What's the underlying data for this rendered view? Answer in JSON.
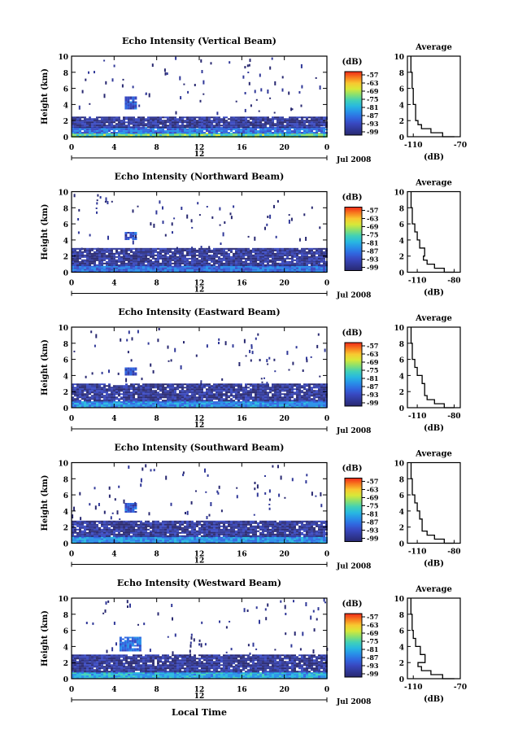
{
  "panels": [
    {
      "title": "Echo Intensity (Vertical Beam)",
      "ylabel": "Height (km)",
      "yticks": [
        "0",
        "2",
        "4",
        "6",
        "8",
        "10"
      ],
      "xticks": [
        "0",
        "4",
        "8",
        "12",
        "16",
        "20",
        "0"
      ],
      "date_label": "12",
      "month_label": "Jul 2008",
      "colorbar": {
        "unit": "(dB)",
        "labels": [
          "-57",
          "-63",
          "-69",
          "-75",
          "-81",
          "-87",
          "-93",
          "-99"
        ]
      },
      "profile": {
        "title": "Average",
        "xticks": [
          "-110",
          "-70"
        ],
        "yticks": [
          "0",
          "2",
          "4",
          "6",
          "8",
          "10"
        ],
        "xlabel": "(dB)"
      }
    },
    {
      "title": "Echo Intensity (Northward Beam)",
      "ylabel": "Height (km)",
      "yticks": [
        "0",
        "2",
        "4",
        "6",
        "8",
        "10"
      ],
      "xticks": [
        "0",
        "4",
        "8",
        "12",
        "16",
        "20",
        "0"
      ],
      "date_label": "12",
      "month_label": "Jul 2008",
      "colorbar": {
        "unit": "(dB)",
        "labels": [
          "-57",
          "-63",
          "-69",
          "-75",
          "-81",
          "-87",
          "-93",
          "-99"
        ]
      },
      "profile": {
        "title": "Average",
        "xticks": [
          "-110",
          "-80"
        ],
        "yticks": [
          "0",
          "2",
          "4",
          "6",
          "8",
          "10"
        ],
        "xlabel": "(dB)"
      }
    },
    {
      "title": "Echo Intensity (Eastward Beam)",
      "ylabel": "Height (km)",
      "yticks": [
        "0",
        "2",
        "4",
        "6",
        "8",
        "10"
      ],
      "xticks": [
        "0",
        "4",
        "8",
        "12",
        "16",
        "20",
        "0"
      ],
      "date_label": "12",
      "month_label": "Jul 2008",
      "colorbar": {
        "unit": "(dB)",
        "labels": [
          "-57",
          "-63",
          "-69",
          "-75",
          "-81",
          "-87",
          "-93",
          "-99"
        ]
      },
      "profile": {
        "title": "Average",
        "xticks": [
          "-110",
          "-80"
        ],
        "yticks": [
          "0",
          "2",
          "4",
          "6",
          "8",
          "10"
        ],
        "xlabel": "(dB)"
      }
    },
    {
      "title": "Echo Intensity (Southward Beam)",
      "ylabel": "Height (km)",
      "yticks": [
        "0",
        "2",
        "4",
        "6",
        "8",
        "10"
      ],
      "xticks": [
        "0",
        "4",
        "8",
        "12",
        "16",
        "20",
        "0"
      ],
      "date_label": "12",
      "month_label": "Jul 2008",
      "colorbar": {
        "unit": "(dB)",
        "labels": [
          "-57",
          "-63",
          "-69",
          "-75",
          "-81",
          "-87",
          "-93",
          "-99"
        ]
      },
      "profile": {
        "title": "Average",
        "xticks": [
          "-110",
          "-80"
        ],
        "yticks": [
          "0",
          "2",
          "4",
          "6",
          "8",
          "10"
        ],
        "xlabel": "(dB)"
      }
    },
    {
      "title": "Echo Intensity (Westward Beam)",
      "ylabel": "Height (km)",
      "yticks": [
        "0",
        "2",
        "4",
        "6",
        "8",
        "10"
      ],
      "xticks": [
        "0",
        "4",
        "8",
        "12",
        "16",
        "20",
        "0"
      ],
      "date_label": "12",
      "month_label": "Jul 2008",
      "colorbar": {
        "unit": "(dB)",
        "labels": [
          "-57",
          "-63",
          "-69",
          "-75",
          "-81",
          "-87",
          "-93",
          "-99"
        ]
      },
      "profile": {
        "title": "Average",
        "xticks": [
          "-110",
          "-70"
        ],
        "yticks": [
          "0",
          "2",
          "4",
          "6",
          "8",
          "10"
        ],
        "xlabel": "(dB)"
      }
    }
  ],
  "xlabel": "Local Time",
  "colors": {
    "colormap": [
      "#f02818",
      "#f87b1e",
      "#f8c830",
      "#d8e838",
      "#88e070",
      "#40d0b8",
      "#28b8e0",
      "#2890e8",
      "#3068e0",
      "#3848c0",
      "#303898",
      "#282870"
    ],
    "text": "#000000",
    "background": "#ffffff"
  },
  "chart_data": [
    {
      "type": "heatmap",
      "title": "Echo Intensity (Vertical Beam)",
      "xlabel": "Local Time",
      "ylabel": "Height (km)",
      "xlim": [
        0,
        24
      ],
      "ylim": [
        0,
        10
      ],
      "zlim": [
        -99,
        -57
      ],
      "zunit": "dB",
      "layers": [
        {
          "height_km": [
            0,
            0.5
          ],
          "dB": -75
        },
        {
          "height_km": [
            0.5,
            1.2
          ],
          "dB": -87
        },
        {
          "height_km": [
            1.2,
            2.5
          ],
          "dB": -96
        },
        {
          "height_km": [
            3.5,
            5
          ],
          "time_h": [
            5,
            6
          ],
          "dB": -90
        }
      ],
      "profile": {
        "type": "line",
        "title": "Average",
        "xlabel": "(dB)",
        "xlim": [
          -115,
          -70
        ],
        "ylim": [
          0,
          10
        ],
        "x": [
          -75,
          -85,
          -95,
          -103,
          -106,
          -108,
          -108,
          -110,
          -110,
          -111,
          -112
        ],
        "y": [
          0,
          0.5,
          1,
          1.5,
          2,
          3,
          4,
          5,
          6,
          8,
          10
        ]
      }
    },
    {
      "type": "heatmap",
      "title": "Echo Intensity (Northward Beam)",
      "xlabel": "Local Time",
      "ylabel": "Height (km)",
      "xlim": [
        0,
        24
      ],
      "ylim": [
        0,
        10
      ],
      "zlim": [
        -99,
        -57
      ],
      "zunit": "dB",
      "layers": [
        {
          "height_km": [
            0,
            0.8
          ],
          "dB": -87
        },
        {
          "height_km": [
            0.8,
            3
          ],
          "dB": -96
        },
        {
          "height_km": [
            4,
            5
          ],
          "time_h": [
            5,
            6
          ],
          "dB": -90
        }
      ],
      "profile": {
        "type": "line",
        "title": "Average",
        "xlabel": "(dB)",
        "xlim": [
          -118,
          -75
        ],
        "ylim": [
          0,
          10
        ],
        "x": [
          -80,
          -88,
          -96,
          -102,
          -105,
          -104,
          -108,
          -110,
          -112,
          -114,
          -115
        ],
        "y": [
          0,
          0.5,
          1,
          1.5,
          2,
          3,
          4,
          5,
          6,
          8,
          10
        ]
      }
    },
    {
      "type": "heatmap",
      "title": "Echo Intensity (Eastward Beam)",
      "xlabel": "Local Time",
      "ylabel": "Height (km)",
      "xlim": [
        0,
        24
      ],
      "ylim": [
        0,
        10
      ],
      "zlim": [
        -99,
        -57
      ],
      "zunit": "dB",
      "layers": [
        {
          "height_km": [
            0,
            0.8
          ],
          "dB": -84
        },
        {
          "height_km": [
            0.8,
            3
          ],
          "dB": -96
        },
        {
          "height_km": [
            4,
            5
          ],
          "time_h": [
            5,
            6
          ],
          "dB": -90
        }
      ],
      "profile": {
        "type": "line",
        "title": "Average",
        "xlabel": "(dB)",
        "xlim": [
          -118,
          -75
        ],
        "ylim": [
          0,
          10
        ],
        "x": [
          -80,
          -88,
          -96,
          -102,
          -104,
          -104,
          -106,
          -110,
          -112,
          -114,
          -115
        ],
        "y": [
          0,
          0.5,
          1,
          1.5,
          2,
          3,
          4,
          5,
          6,
          8,
          10
        ]
      }
    },
    {
      "type": "heatmap",
      "title": "Echo Intensity (Southward Beam)",
      "xlabel": "Local Time",
      "ylabel": "Height (km)",
      "xlim": [
        0,
        24
      ],
      "ylim": [
        0,
        10
      ],
      "zlim": [
        -99,
        -57
      ],
      "zunit": "dB",
      "layers": [
        {
          "height_km": [
            0,
            0.8
          ],
          "dB": -84
        },
        {
          "height_km": [
            0.8,
            2.8
          ],
          "dB": -96
        },
        {
          "height_km": [
            3.8,
            5
          ],
          "time_h": [
            5,
            6
          ],
          "dB": -90
        }
      ],
      "profile": {
        "type": "line",
        "title": "Average",
        "xlabel": "(dB)",
        "xlim": [
          -118,
          -75
        ],
        "ylim": [
          0,
          10
        ],
        "x": [
          -80,
          -88,
          -96,
          -102,
          -106,
          -106,
          -108,
          -110,
          -112,
          -114,
          -115
        ],
        "y": [
          0,
          0.5,
          1,
          1.5,
          2,
          3,
          4,
          5,
          6,
          8,
          10
        ]
      }
    },
    {
      "type": "heatmap",
      "title": "Echo Intensity (Westward Beam)",
      "xlabel": "Local Time",
      "ylabel": "Height (km)",
      "xlim": [
        0,
        24
      ],
      "ylim": [
        0,
        10
      ],
      "zlim": [
        -99,
        -57
      ],
      "zunit": "dB",
      "layers": [
        {
          "height_km": [
            0,
            0.8
          ],
          "dB": -81
        },
        {
          "height_km": [
            0.8,
            3
          ],
          "dB": -96
        },
        {
          "height_km": [
            3.5,
            5.2
          ],
          "time_h": [
            4.5,
            6.5
          ],
          "dB": -87
        }
      ],
      "profile": {
        "type": "line",
        "title": "Average",
        "xlabel": "(dB)",
        "xlim": [
          -115,
          -70
        ],
        "ylim": [
          0,
          10
        ],
        "x": [
          -75,
          -85,
          -95,
          -103,
          -106,
          -100,
          -104,
          -108,
          -110,
          -111,
          -112
        ],
        "y": [
          0,
          0.5,
          1,
          1.5,
          2,
          3,
          4,
          5,
          6,
          8,
          10
        ]
      }
    }
  ]
}
